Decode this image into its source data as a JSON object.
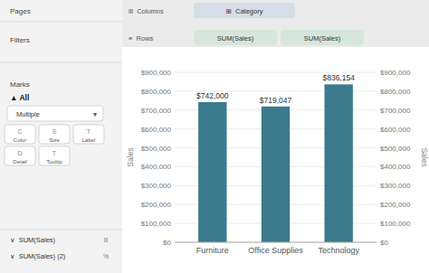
{
  "chart_data": {
    "type": "bar",
    "y_label": "Sales",
    "categories": [
      "Furniture",
      "Office Supplies",
      "Technology"
    ],
    "values": [
      742000,
      719047,
      836154
    ],
    "value_labels": [
      "$742,000",
      "$719,047",
      "$836,154"
    ],
    "data_labels": true,
    "color": "#3a7a8c",
    "ylim": [
      0,
      900000
    ],
    "yticks": [
      {
        "value": 0,
        "label": "$0"
      },
      {
        "value": 100000,
        "label": "$100,000"
      },
      {
        "value": 200000,
        "label": "$200,000"
      },
      {
        "value": 300000,
        "label": "$300,000"
      },
      {
        "value": 400000,
        "label": "$400,000"
      },
      {
        "value": 500000,
        "label": "$500,000"
      },
      {
        "value": 600000,
        "label": "$600,000"
      },
      {
        "value": 700000,
        "label": "$700,000"
      },
      {
        "value": 800000,
        "label": "$800,000"
      },
      {
        "value": 900000,
        "label": "$900,000"
      }
    ],
    "grid": true,
    "annotations": [
      "Pages",
      "Filters",
      "Marks",
      "▲ All",
      "Multiple",
      "▾",
      "C",
      "Color",
      "S",
      "Size",
      "T",
      "Label",
      "D",
      "Detail",
      "T",
      "Tooltip",
      "∨  SUM(Sales)",
      "lll",
      "∨  SUM(Sales) (2)",
      "%",
      "lll  Columns",
      "⊞  Category",
      "≡  Rows",
      "SUM(Sales)",
      "SUM(Sales)"
    ]
  }
}
